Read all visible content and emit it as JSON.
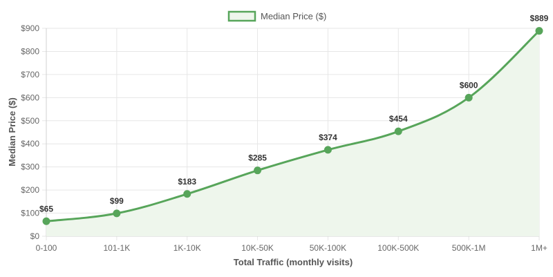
{
  "chart_data": {
    "type": "line",
    "categories": [
      "0-100",
      "101-1K",
      "1K-10K",
      "10K-50K",
      "50K-100K",
      "100K-500K",
      "500K-1M",
      "1M+"
    ],
    "series": [
      {
        "name": "Median Price ($)",
        "values": [
          65,
          99,
          183,
          285,
          374,
          454,
          600,
          889
        ],
        "labels": [
          "$65",
          "$99",
          "$183",
          "$285",
          "$374",
          "$454",
          "$600",
          "$889"
        ],
        "color": "#57a55a",
        "fill": "#eef6ec"
      }
    ],
    "xlabel": "Total Traffic (monthly visits)",
    "ylabel": "Median Price ($)",
    "ylim": [
      0,
      900
    ],
    "yticks": [
      0,
      100,
      200,
      300,
      400,
      500,
      600,
      700,
      800,
      900
    ],
    "ytick_labels": [
      "$0",
      "$100",
      "$200",
      "$300",
      "$400",
      "$500",
      "$600",
      "$700",
      "$800",
      "$900"
    ],
    "grid": true,
    "legend": "top-center",
    "area_fill": true,
    "smooth": true
  }
}
